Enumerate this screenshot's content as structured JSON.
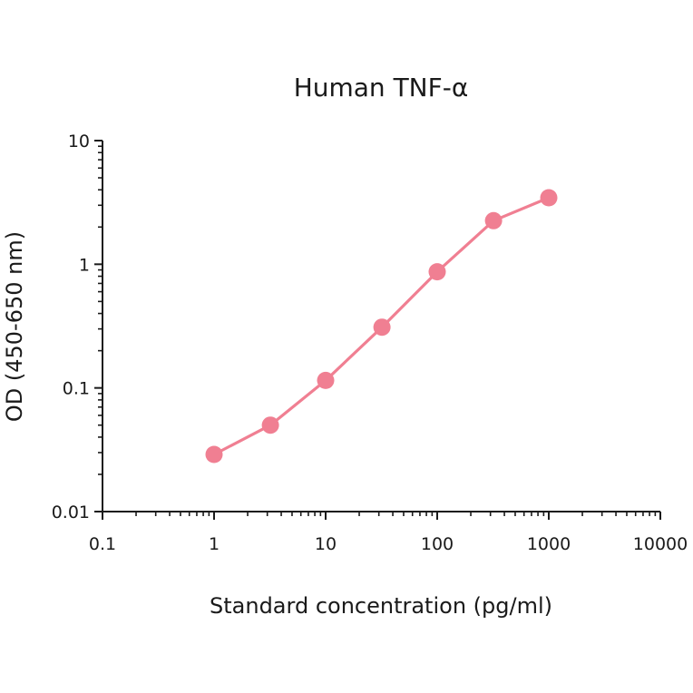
{
  "chart_data": {
    "type": "line",
    "title": "Human TNF-α",
    "xlabel": "Standard concentration (pg/ml)",
    "ylabel": "OD (450-650 nm)",
    "x_scale": "log",
    "y_scale": "log",
    "xlim": [
      0.1,
      10000
    ],
    "ylim": [
      0.01,
      10
    ],
    "x_ticks": [
      0.1,
      1,
      10,
      100,
      1000,
      10000
    ],
    "x_tick_labels": [
      "0.1",
      "1",
      "10",
      "100",
      "1000",
      "10000"
    ],
    "y_ticks": [
      0.01,
      0.1,
      1,
      10
    ],
    "y_tick_labels": [
      "0.01",
      "0.1",
      "1",
      "10"
    ],
    "grid": false,
    "series": [
      {
        "color": "#f07f92",
        "x": [
          1,
          3.2,
          10,
          32,
          100,
          320,
          1000
        ],
        "y": [
          0.029,
          0.05,
          0.115,
          0.31,
          0.87,
          2.25,
          3.45
        ]
      }
    ]
  }
}
